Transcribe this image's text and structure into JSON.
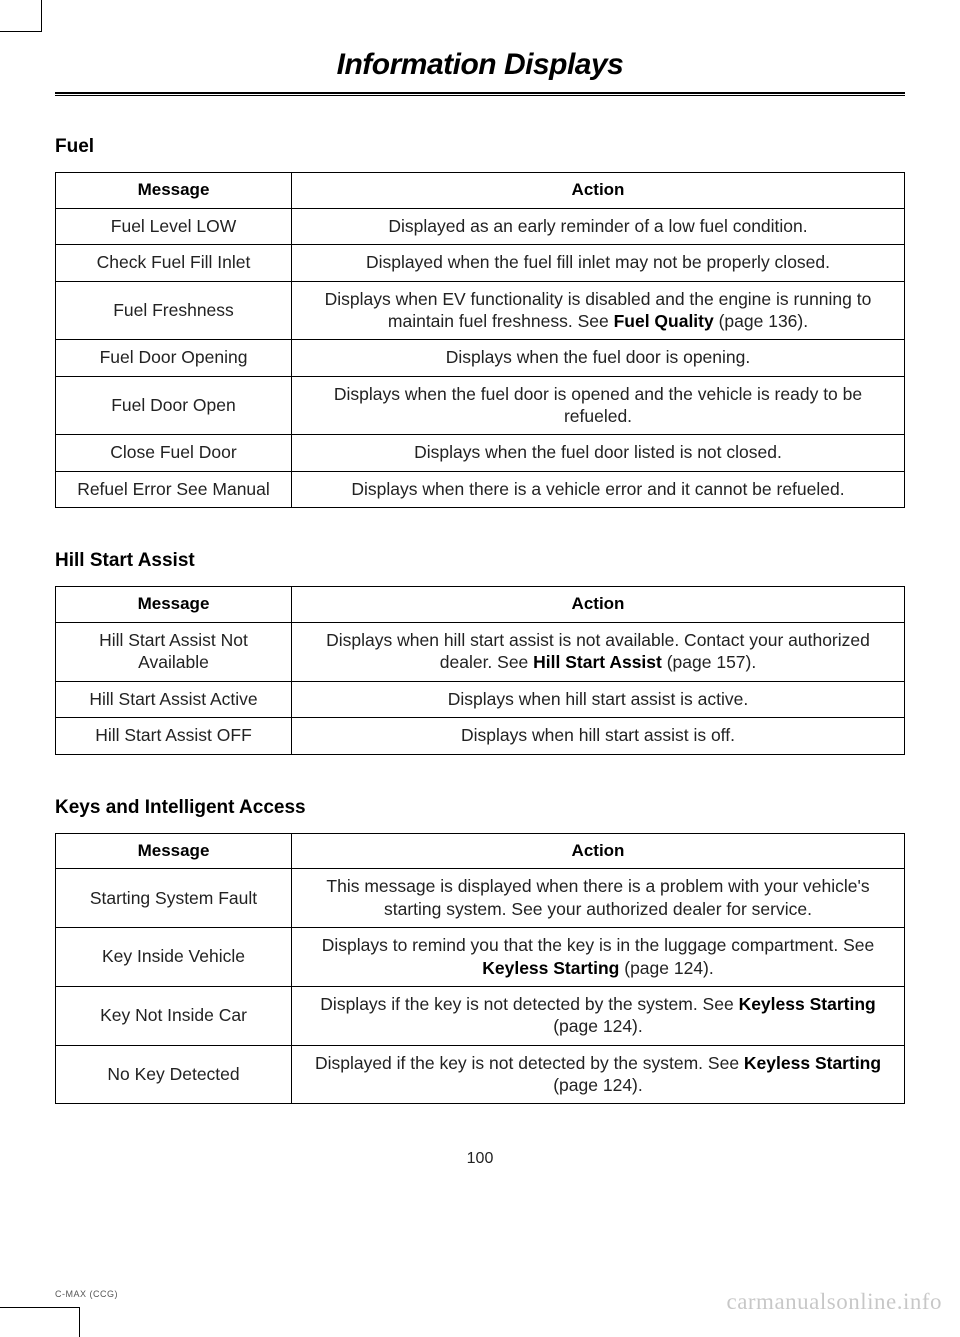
{
  "chapter_title": "Information Displays",
  "page_number": "100",
  "footer_code": "C-MAX (CCG)",
  "watermark": "carmanualsonline.info",
  "sections": [
    {
      "heading": "Fuel",
      "columns": [
        "Message",
        "Action"
      ],
      "rows": [
        {
          "message": "Fuel Level LOW",
          "action_parts": [
            {
              "t": "Displayed as an early reminder of a low fuel condition."
            }
          ]
        },
        {
          "message": "Check Fuel Fill Inlet",
          "action_parts": [
            {
              "t": "Displayed when the fuel fill inlet may not be properly closed."
            }
          ]
        },
        {
          "message": "Fuel Freshness",
          "action_parts": [
            {
              "t": "Displays when EV functionality is disabled and the engine is running to maintain fuel freshness. See "
            },
            {
              "t": "Fuel Quality",
              "b": true
            },
            {
              "t": " (page 136)."
            }
          ]
        },
        {
          "message": "Fuel Door Opening",
          "action_parts": [
            {
              "t": "Displays when the fuel door is opening."
            }
          ]
        },
        {
          "message": "Fuel Door Open",
          "action_parts": [
            {
              "t": "Displays when the fuel door is opened and the vehicle is ready to be refueled."
            }
          ]
        },
        {
          "message": "Close Fuel Door",
          "action_parts": [
            {
              "t": "Displays when the fuel door listed is not closed."
            }
          ]
        },
        {
          "message": "Refuel Error See Manual",
          "action_parts": [
            {
              "t": "Displays when there is a vehicle error and it cannot be refueled."
            }
          ]
        }
      ]
    },
    {
      "heading": "Hill Start Assist",
      "columns": [
        "Message",
        "Action"
      ],
      "rows": [
        {
          "message": "Hill Start Assist Not Available",
          "action_parts": [
            {
              "t": "Displays when hill start assist is not available. Contact your authorized dealer.  See "
            },
            {
              "t": "Hill Start Assist",
              "b": true
            },
            {
              "t": " (page 157)."
            }
          ]
        },
        {
          "message": "Hill Start Assist Active",
          "action_parts": [
            {
              "t": "Displays when hill start assist is active."
            }
          ]
        },
        {
          "message": "Hill Start Assist OFF",
          "action_parts": [
            {
              "t": "Displays when hill start assist is off."
            }
          ]
        }
      ]
    },
    {
      "heading": "Keys and Intelligent Access",
      "columns": [
        "Message",
        "Action"
      ],
      "rows": [
        {
          "message": "Starting System Fault",
          "action_parts": [
            {
              "t": "This message is displayed when there is a problem with your vehicle's starting system. See your authorized dealer for service."
            }
          ]
        },
        {
          "message": "Key Inside Vehicle",
          "action_parts": [
            {
              "t": "Displays to remind you that the key is in the luggage compartment.  See "
            },
            {
              "t": "Keyless Starting",
              "b": true
            },
            {
              "t": " (page 124)."
            }
          ]
        },
        {
          "message": "Key Not Inside Car",
          "action_parts": [
            {
              "t": "Displays if the key is not detected by the system.  See "
            },
            {
              "t": "Keyless Starting",
              "b": true
            },
            {
              "t": " (page 124)."
            }
          ]
        },
        {
          "message": "No Key Detected",
          "action_parts": [
            {
              "t": "Displayed if the key is not detected by the system.  See "
            },
            {
              "t": "Keyless Starting",
              "b": true
            },
            {
              "t": " (page 124)."
            }
          ]
        }
      ]
    }
  ]
}
